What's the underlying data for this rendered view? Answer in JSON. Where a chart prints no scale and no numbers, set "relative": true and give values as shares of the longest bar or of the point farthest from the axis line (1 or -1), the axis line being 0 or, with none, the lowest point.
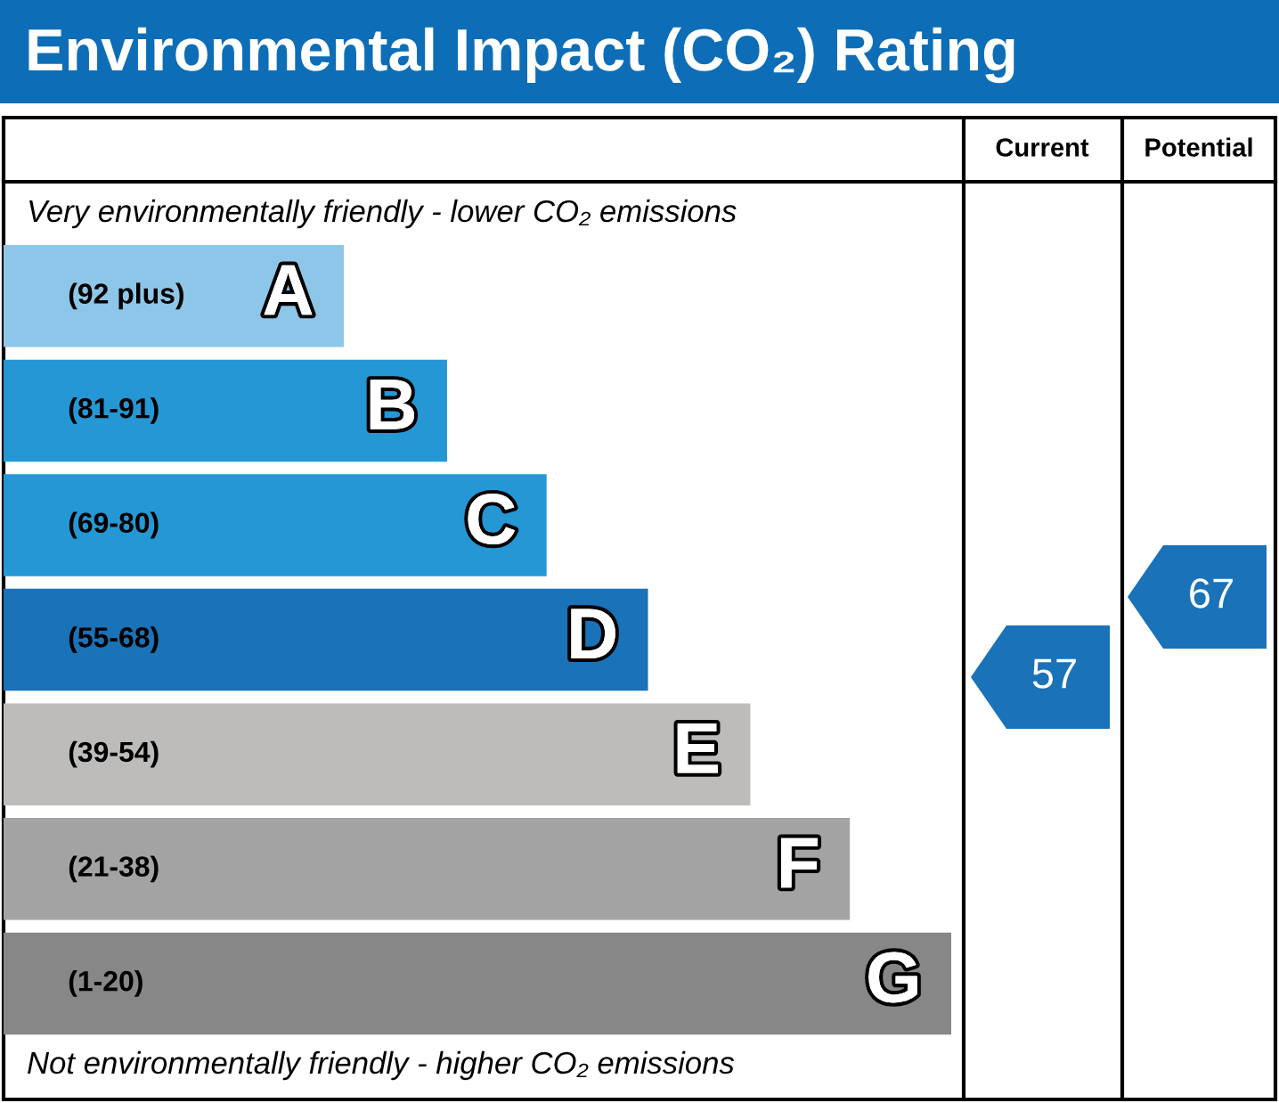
{
  "chart_data": {
    "type": "bar",
    "orientation": "horizontal",
    "relative": true,
    "title": "Environmental Impact (CO₂) Rating",
    "subtitle": "Very environmentally friendly - lower CO₂ emissions",
    "categories": [
      "(92 plus)",
      "(81-91)",
      "(69-80)",
      "(55-68)",
      "(39-54)",
      "(21-38)",
      "(1-20)"
    ],
    "values": [
      0.359,
      0.468,
      0.573,
      0.68,
      0.788,
      0.893,
      1
    ],
    "colors": [
      "#8dc6e8",
      "#2597d5",
      "#2597d5",
      "#1a72b8",
      "#bdbcbb",
      "#a3a3a3",
      "#878787"
    ],
    "annotations": [
      "Not environmentally friendly - higher CO₂ emissions",
      "Current",
      "Potential",
      "57",
      "67",
      {
        "text": "A",
        "x": 0.359,
        "y": "(92 plus)"
      },
      {
        "text": "B",
        "x": 0.468,
        "y": "(81-91)"
      },
      {
        "text": "C",
        "x": 0.573,
        "y": "(69-80)"
      },
      {
        "text": "D",
        "x": 0.68,
        "y": "(55-68)"
      },
      {
        "text": "E",
        "x": 0.788,
        "y": "(39-54)"
      },
      {
        "text": "F",
        "x": 0.893,
        "y": "(21-38)"
      },
      {
        "text": "G",
        "x": 1,
        "y": "(1-20)"
      }
    ]
  }
}
